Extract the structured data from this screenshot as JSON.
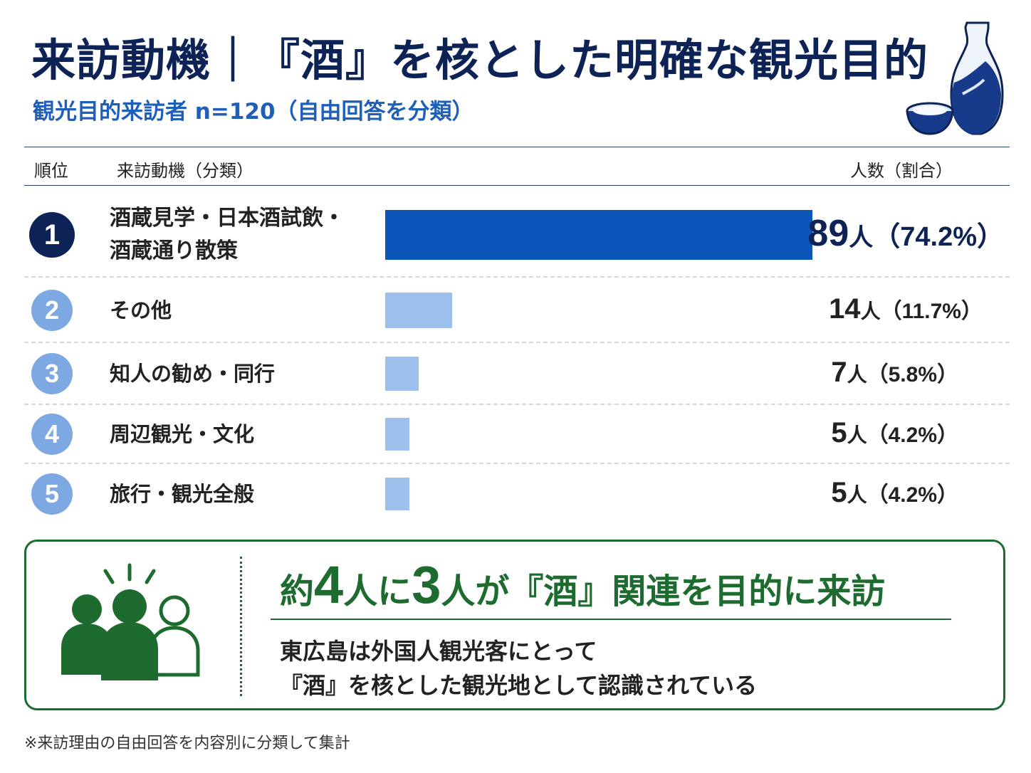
{
  "title": "来訪動機｜『酒』を核とした明確な観光目的",
  "subtitle": "観光目的来訪者 n=120（自由回答を分類）",
  "table_header": {
    "rank": "順位",
    "motive": "来訪動機（分類）",
    "count": "人数（割合）"
  },
  "colors": {
    "navy": "#0d2356",
    "top_bar": "#0b56b8",
    "other_bar": "#9dc0ec",
    "green": "#1d6b2e",
    "rank_other": "#7ea8e2"
  },
  "chart_data": {
    "type": "bar",
    "orientation": "horizontal",
    "categories": [
      "酒蔵見学・日本酒試飲・酒蔵通り散策",
      "その他",
      "知人の勧め・同行",
      "周辺観光・文化",
      "旅行・観光全般"
    ],
    "values": [
      89,
      14,
      7,
      5,
      5
    ],
    "percentages": [
      74.2,
      11.7,
      5.8,
      4.2,
      4.2
    ],
    "xlim": [
      0,
      89
    ],
    "rows": [
      {
        "rank": "1",
        "label_lines": [
          "酒蔵見学・日本酒試飲・",
          "酒蔵通り散策"
        ],
        "count": "89",
        "unit": "人",
        "pct": "（74.2%）"
      },
      {
        "rank": "2",
        "label_lines": [
          "その他"
        ],
        "count": "14",
        "unit": "人",
        "pct": "（11.7%）"
      },
      {
        "rank": "3",
        "label_lines": [
          "知人の勧め・同行"
        ],
        "count": "7",
        "unit": "人",
        "pct": "（5.8%）"
      },
      {
        "rank": "4",
        "label_lines": [
          "周辺観光・文化"
        ],
        "count": "5",
        "unit": "人",
        "pct": "（4.2%）"
      },
      {
        "rank": "5",
        "label_lines": [
          "旅行・観光全般"
        ],
        "count": "5",
        "unit": "人",
        "pct": "（4.2%）"
      }
    ]
  },
  "callout": {
    "headline_parts": [
      "約",
      "4",
      "人に",
      "3",
      "人が『酒』関連を目的に来訪"
    ],
    "body_lines": [
      "東広島は外国人観光客にとって",
      "『酒』を核とした観光地として認識されている"
    ]
  },
  "footnote": "※来訪理由の自由回答を内容別に分類して集計"
}
